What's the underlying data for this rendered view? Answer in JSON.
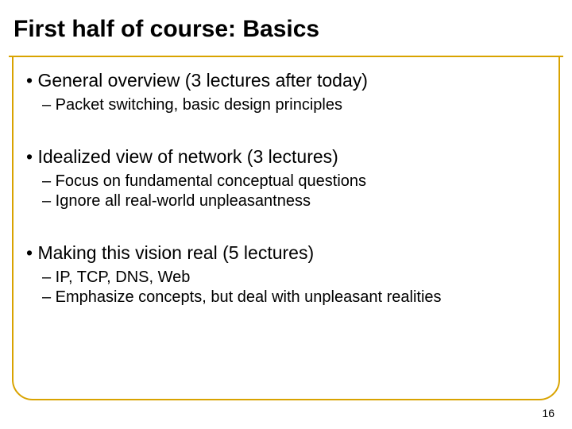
{
  "frame_color": "#d9a300",
  "background_color": "#ffffff",
  "text_color": "#000000",
  "title": "First half of course: Basics",
  "title_fontsize": 30,
  "bullet_l1_fontsize": 23,
  "bullet_l2_fontsize": 20,
  "sections": [
    {
      "heading": "• General overview (3 lectures after today)",
      "subitems": [
        "– Packet switching, basic design principles"
      ]
    },
    {
      "heading": "• Idealized view of network (3 lectures)",
      "subitems": [
        "– Focus on fundamental conceptual questions",
        "– Ignore all real-world unpleasantness"
      ]
    },
    {
      "heading": "• Making this vision real (5 lectures)",
      "subitems": [
        "– IP, TCP, DNS, Web",
        "– Emphasize concepts, but deal with unpleasant realities"
      ]
    }
  ],
  "page_number": "16"
}
